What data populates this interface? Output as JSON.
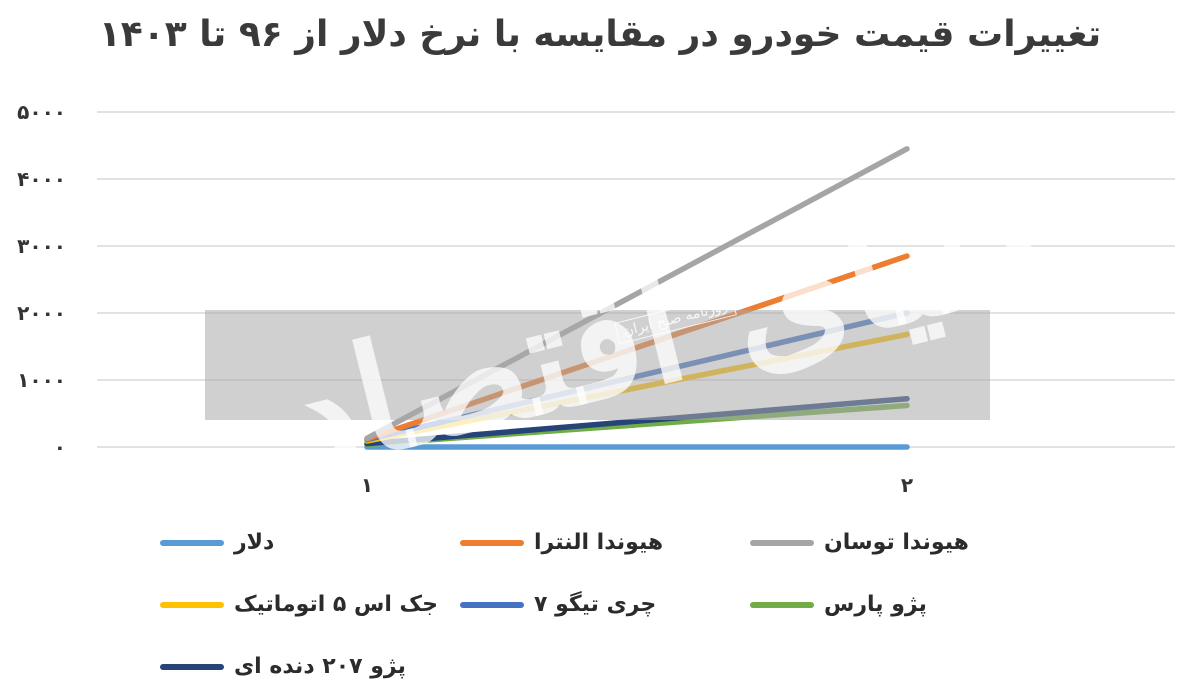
{
  "chart_data": {
    "type": "line",
    "title": "تغییرات قیمت خودرو در مقایسه با نرخ دلار از ۹۶ تا ۱۴۰۳",
    "x": [
      "۱",
      "۲"
    ],
    "ylim": [
      0,
      5000
    ],
    "yticks": [
      "۰",
      "۱۰۰۰",
      "۲۰۰۰",
      "۳۰۰۰",
      "۴۰۰۰",
      "۵۰۰۰"
    ],
    "ytick_values": [
      0,
      1000,
      2000,
      3000,
      4000,
      5000
    ],
    "grid": true,
    "legend_position": "bottom",
    "series": [
      {
        "name": "دلار",
        "color": "#5b9bd5",
        "values": [
          0,
          0
        ]
      },
      {
        "name": "هیوندا النترا",
        "color": "#ed7d31",
        "values": [
          120,
          2850
        ]
      },
      {
        "name": "هیوندا توسان",
        "color": "#a5a5a5",
        "values": [
          130,
          4450
        ]
      },
      {
        "name": "جک اس ۵ اتوماتیک",
        "color": "#ffc000",
        "values": [
          90,
          1680
        ]
      },
      {
        "name": "چری تیگو ۷",
        "color": "#4472c4",
        "values": [
          110,
          2000
        ]
      },
      {
        "name": "پژو پارس",
        "color": "#70ad47",
        "values": [
          40,
          620
        ]
      },
      {
        "name": "پژو ۲۰۷ دنده ای",
        "color": "#264478",
        "values": [
          50,
          720
        ]
      }
    ]
  },
  "watermark": {
    "logo_text": "دنیای اقتصاد",
    "sub_text": "روزنامه صبح ایران"
  }
}
